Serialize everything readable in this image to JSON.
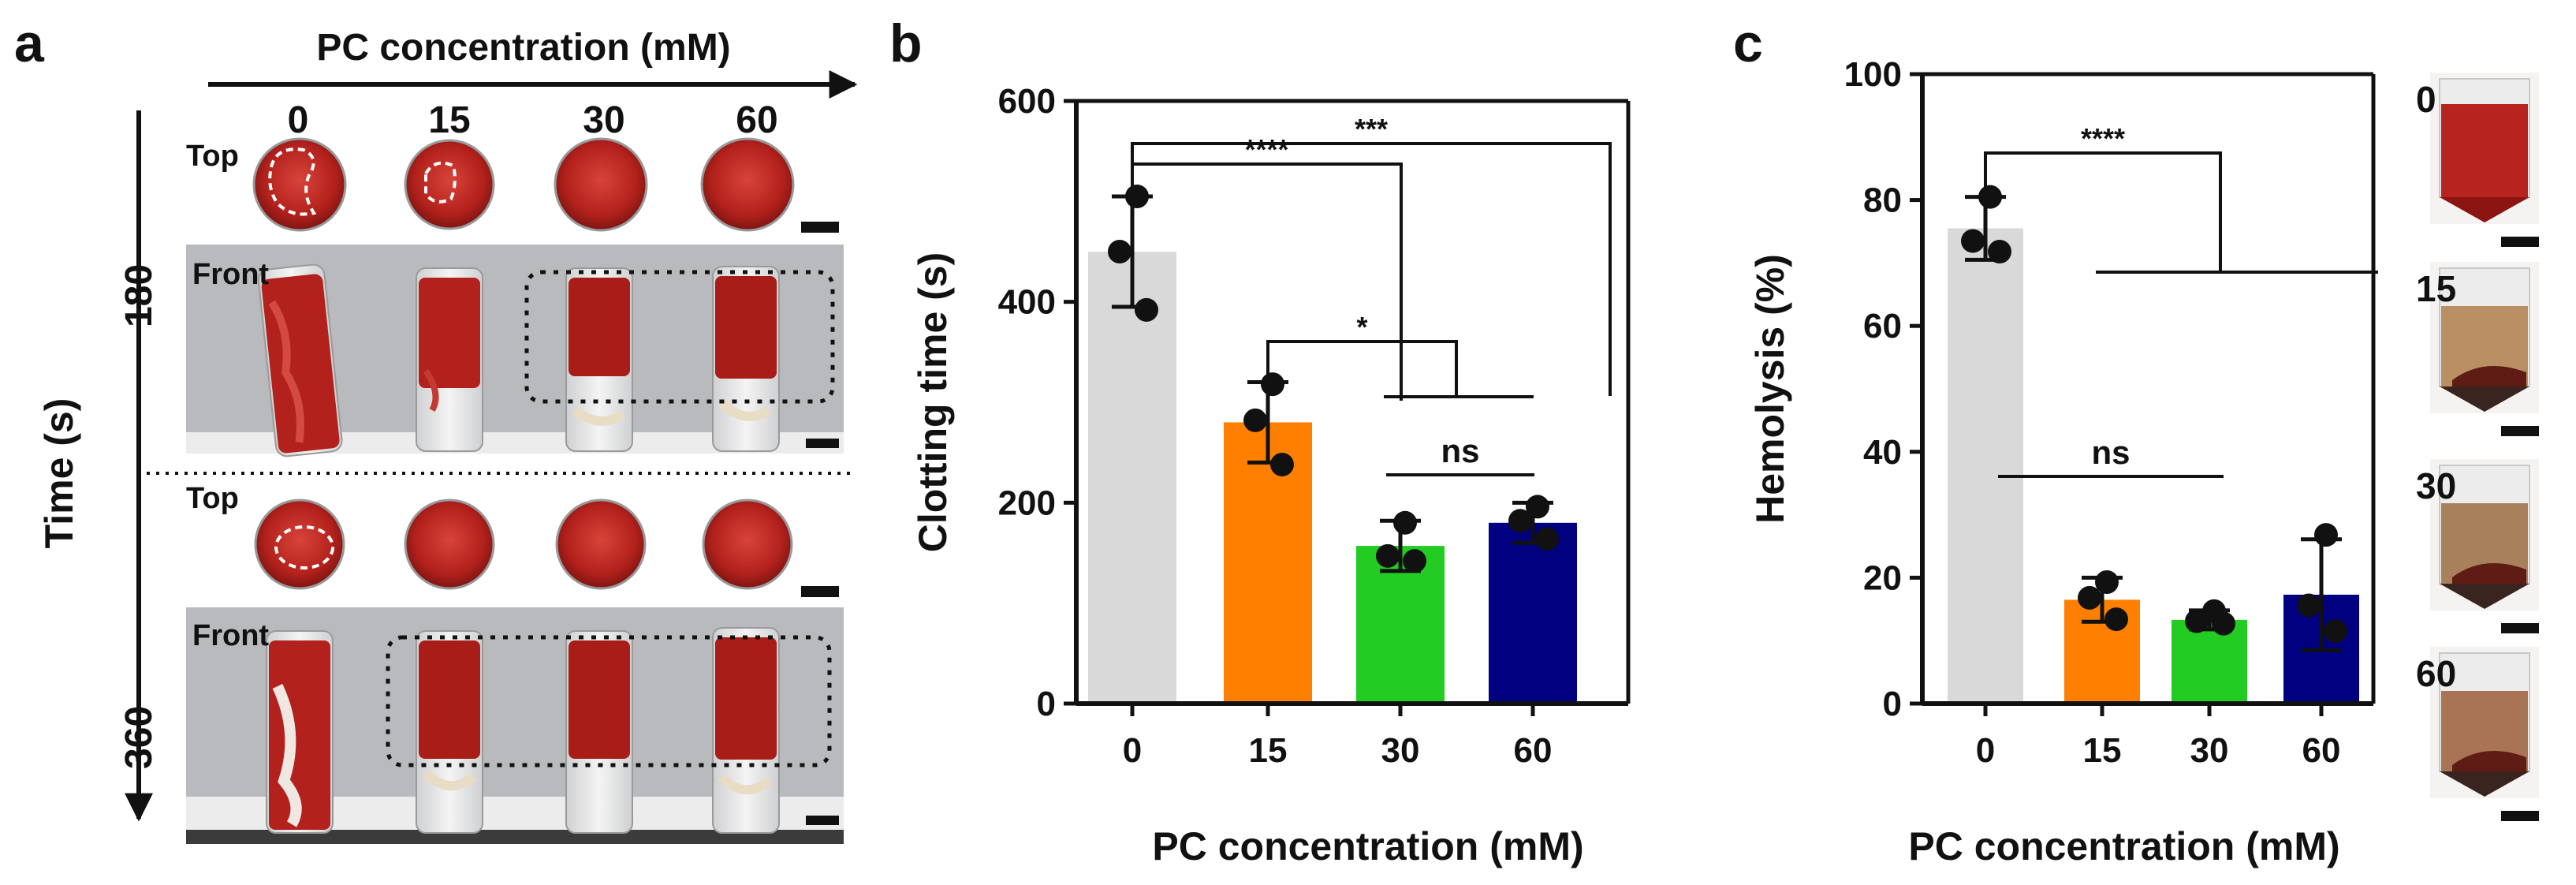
{
  "panels": {
    "a": "a",
    "b": "b",
    "c": "c"
  },
  "panel_a": {
    "axis_title": "PC concentration (mM)",
    "concentrations": [
      "0",
      "15",
      "30",
      "60"
    ],
    "time_label": "Time (s)",
    "times": [
      "180",
      "360"
    ],
    "view_top": "Top",
    "view_front": "Front",
    "colors": {
      "blood": "#b3211c",
      "blood_dark": "#8c1512",
      "blood_light": "#d24a40",
      "backdrop": "#b9bbbf",
      "glass": "#e6e6e6",
      "clot_pale": "#e8dcc4"
    }
  },
  "panel_c_photos": {
    "labels": [
      "0",
      "15",
      "30",
      "60"
    ],
    "colors": [
      "#b7231f",
      "#b98f63",
      "#a8805c",
      "#a97455"
    ]
  },
  "chart_data": [
    {
      "type": "bar",
      "panel": "b",
      "title": "",
      "xlabel": "PC concentration (mM)",
      "ylabel": "Clotting time (s)",
      "categories": [
        "0",
        "15",
        "30",
        "60"
      ],
      "values": [
        450,
        280,
        157,
        180
      ],
      "error": [
        55,
        40,
        25,
        20
      ],
      "points": [
        [
          505,
          450,
          392
        ],
        [
          318,
          282,
          238
        ],
        [
          180,
          147,
          142
        ],
        [
          196,
          182,
          164
        ]
      ],
      "colors": [
        "#d9d9d9",
        "#ff8000",
        "#22cc22",
        "#000080"
      ],
      "ylim": [
        0,
        600
      ],
      "yticks": [
        0,
        200,
        400,
        600
      ],
      "significance": [
        {
          "label": "***",
          "from": 0,
          "to": [
            3
          ]
        },
        {
          "label": "****",
          "from": 0,
          "to": [
            2
          ]
        },
        {
          "label": "*",
          "from": 1,
          "to": [
            2,
            3
          ]
        },
        {
          "label": "ns",
          "from": 2,
          "to": [
            3
          ]
        }
      ]
    },
    {
      "type": "bar",
      "panel": "c",
      "title": "",
      "xlabel": "PC concentration (mM)",
      "ylabel": "Hemolysis (%)",
      "categories": [
        "0",
        "15",
        "30",
        "60"
      ],
      "values": [
        75.5,
        16.5,
        13.3,
        17.3
      ],
      "error": [
        5,
        3.5,
        1.5,
        8.8
      ],
      "points": [
        [
          80.5,
          73.5,
          71.8
        ],
        [
          19.3,
          16.8,
          13.4
        ],
        [
          14.7,
          13.1,
          12.7
        ],
        [
          26.8,
          15.6,
          11.5
        ]
      ],
      "colors": [
        "#d9d9d9",
        "#ff8000",
        "#22cc22",
        "#000080"
      ],
      "ylim": [
        0,
        100
      ],
      "yticks": [
        0,
        20,
        40,
        60,
        80,
        100
      ],
      "significance": [
        {
          "label": "****",
          "from": 0,
          "to": [
            1,
            2,
            3
          ]
        },
        {
          "label": "ns",
          "from": 1,
          "to": [
            3
          ]
        }
      ]
    }
  ]
}
